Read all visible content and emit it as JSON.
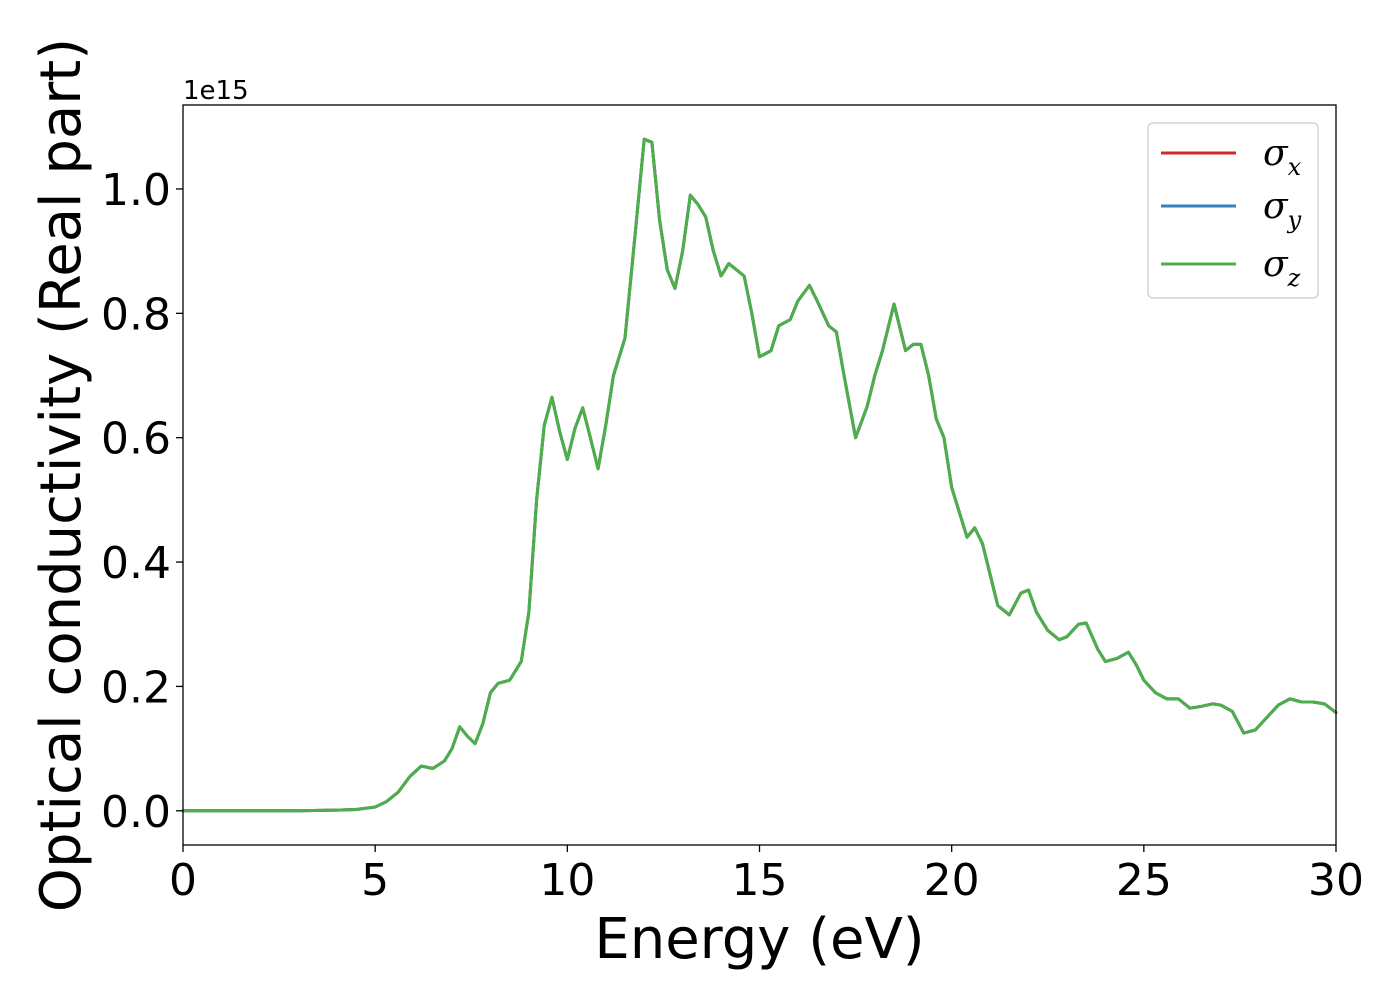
{
  "chart_data": {
    "type": "line",
    "title": "",
    "xlabel": "Energy (eV)",
    "ylabel": "Optical conductivity (Real part)",
    "y_offset_label": "1e15",
    "y_scale": 1000000000000000.0,
    "xlim": [
      0,
      30
    ],
    "ylim": [
      -0.055,
      1.135
    ],
    "xticks": [
      0,
      5,
      10,
      15,
      20,
      25,
      30
    ],
    "xtick_labels": [
      "0",
      "5",
      "10",
      "15",
      "20",
      "25",
      "30"
    ],
    "yticks": [
      0.0,
      0.2,
      0.4,
      0.6,
      0.8,
      1.0
    ],
    "ytick_labels": [
      "0.0",
      "0.2",
      "0.4",
      "0.6",
      "0.8",
      "1.0"
    ],
    "grid": false,
    "legend_position": "top-right",
    "x": [
      0,
      1,
      2,
      3,
      4,
      4.5,
      5.0,
      5.3,
      5.6,
      5.9,
      6.2,
      6.5,
      6.8,
      7.0,
      7.2,
      7.4,
      7.6,
      7.8,
      8.0,
      8.2,
      8.5,
      8.8,
      9.0,
      9.2,
      9.4,
      9.6,
      9.8,
      10.0,
      10.2,
      10.4,
      10.6,
      10.8,
      11.0,
      11.2,
      11.5,
      11.8,
      12.0,
      12.2,
      12.4,
      12.6,
      12.8,
      13.0,
      13.2,
      13.4,
      13.6,
      13.8,
      14.0,
      14.2,
      14.4,
      14.6,
      14.8,
      15.0,
      15.3,
      15.5,
      15.8,
      16.0,
      16.3,
      16.5,
      16.8,
      17.0,
      17.2,
      17.5,
      17.8,
      18.0,
      18.2,
      18.5,
      18.8,
      19.0,
      19.2,
      19.4,
      19.6,
      19.8,
      20.0,
      20.2,
      20.4,
      20.6,
      20.8,
      21.0,
      21.2,
      21.5,
      21.8,
      22.0,
      22.2,
      22.5,
      22.8,
      23.0,
      23.3,
      23.5,
      23.8,
      24.0,
      24.3,
      24.6,
      24.8,
      25.0,
      25.3,
      25.6,
      25.9,
      26.2,
      26.5,
      26.8,
      27.0,
      27.3,
      27.6,
      27.9,
      28.2,
      28.5,
      28.8,
      29.1,
      29.4,
      29.7,
      30.0
    ],
    "series": [
      {
        "name": "σ_x",
        "legend_symbol": "σ",
        "legend_subscript": "x",
        "color": "#d62728",
        "values": [
          0.0,
          0.0,
          0.0,
          0.0,
          0.001,
          0.002,
          0.006,
          0.015,
          0.03,
          0.055,
          0.072,
          0.068,
          0.08,
          0.1,
          0.135,
          0.12,
          0.108,
          0.14,
          0.19,
          0.205,
          0.21,
          0.24,
          0.32,
          0.5,
          0.62,
          0.665,
          0.61,
          0.565,
          0.615,
          0.648,
          0.6,
          0.55,
          0.62,
          0.7,
          0.76,
          0.95,
          1.08,
          1.075,
          0.95,
          0.87,
          0.84,
          0.9,
          0.99,
          0.975,
          0.955,
          0.9,
          0.86,
          0.88,
          0.87,
          0.86,
          0.8,
          0.73,
          0.74,
          0.78,
          0.79,
          0.82,
          0.845,
          0.82,
          0.78,
          0.77,
          0.7,
          0.6,
          0.65,
          0.7,
          0.74,
          0.815,
          0.74,
          0.75,
          0.75,
          0.7,
          0.63,
          0.6,
          0.52,
          0.48,
          0.44,
          0.455,
          0.43,
          0.38,
          0.33,
          0.315,
          0.35,
          0.355,
          0.32,
          0.29,
          0.275,
          0.28,
          0.3,
          0.302,
          0.26,
          0.24,
          0.245,
          0.255,
          0.235,
          0.21,
          0.19,
          0.18,
          0.18,
          0.165,
          0.168,
          0.172,
          0.17,
          0.16,
          0.125,
          0.13,
          0.15,
          0.17,
          0.18,
          0.175,
          0.175,
          0.172,
          0.158
        ]
      },
      {
        "name": "σ_y",
        "legend_symbol": "σ",
        "legend_subscript": "y",
        "color": "#3a7fb8",
        "values": [
          0.0,
          0.0,
          0.0,
          0.0,
          0.001,
          0.002,
          0.006,
          0.015,
          0.03,
          0.055,
          0.072,
          0.068,
          0.08,
          0.1,
          0.135,
          0.12,
          0.108,
          0.14,
          0.19,
          0.205,
          0.21,
          0.24,
          0.32,
          0.5,
          0.62,
          0.665,
          0.61,
          0.565,
          0.615,
          0.648,
          0.6,
          0.55,
          0.62,
          0.7,
          0.76,
          0.95,
          1.08,
          1.075,
          0.95,
          0.87,
          0.84,
          0.9,
          0.99,
          0.975,
          0.955,
          0.9,
          0.86,
          0.88,
          0.87,
          0.86,
          0.8,
          0.73,
          0.74,
          0.78,
          0.79,
          0.82,
          0.845,
          0.82,
          0.78,
          0.77,
          0.7,
          0.6,
          0.65,
          0.7,
          0.74,
          0.815,
          0.74,
          0.75,
          0.75,
          0.7,
          0.63,
          0.6,
          0.52,
          0.48,
          0.44,
          0.455,
          0.43,
          0.38,
          0.33,
          0.315,
          0.35,
          0.355,
          0.32,
          0.29,
          0.275,
          0.28,
          0.3,
          0.302,
          0.26,
          0.24,
          0.245,
          0.255,
          0.235,
          0.21,
          0.19,
          0.18,
          0.18,
          0.165,
          0.168,
          0.172,
          0.17,
          0.16,
          0.125,
          0.13,
          0.15,
          0.17,
          0.18,
          0.175,
          0.175,
          0.172,
          0.158
        ]
      },
      {
        "name": "σ_z",
        "legend_symbol": "σ",
        "legend_subscript": "z",
        "color": "#4daf4a",
        "values": [
          0.0,
          0.0,
          0.0,
          0.0,
          0.001,
          0.002,
          0.006,
          0.015,
          0.03,
          0.055,
          0.072,
          0.068,
          0.08,
          0.1,
          0.135,
          0.12,
          0.108,
          0.14,
          0.19,
          0.205,
          0.21,
          0.24,
          0.32,
          0.5,
          0.62,
          0.665,
          0.61,
          0.565,
          0.615,
          0.648,
          0.6,
          0.55,
          0.62,
          0.7,
          0.76,
          0.95,
          1.08,
          1.075,
          0.95,
          0.87,
          0.84,
          0.9,
          0.99,
          0.975,
          0.955,
          0.9,
          0.86,
          0.88,
          0.87,
          0.86,
          0.8,
          0.73,
          0.74,
          0.78,
          0.79,
          0.82,
          0.845,
          0.82,
          0.78,
          0.77,
          0.7,
          0.6,
          0.65,
          0.7,
          0.74,
          0.815,
          0.74,
          0.75,
          0.75,
          0.7,
          0.63,
          0.6,
          0.52,
          0.48,
          0.44,
          0.455,
          0.43,
          0.38,
          0.33,
          0.315,
          0.35,
          0.355,
          0.32,
          0.29,
          0.275,
          0.28,
          0.3,
          0.302,
          0.26,
          0.24,
          0.245,
          0.255,
          0.235,
          0.21,
          0.19,
          0.18,
          0.18,
          0.165,
          0.168,
          0.172,
          0.17,
          0.16,
          0.125,
          0.13,
          0.15,
          0.17,
          0.18,
          0.175,
          0.175,
          0.172,
          0.158
        ]
      }
    ]
  }
}
